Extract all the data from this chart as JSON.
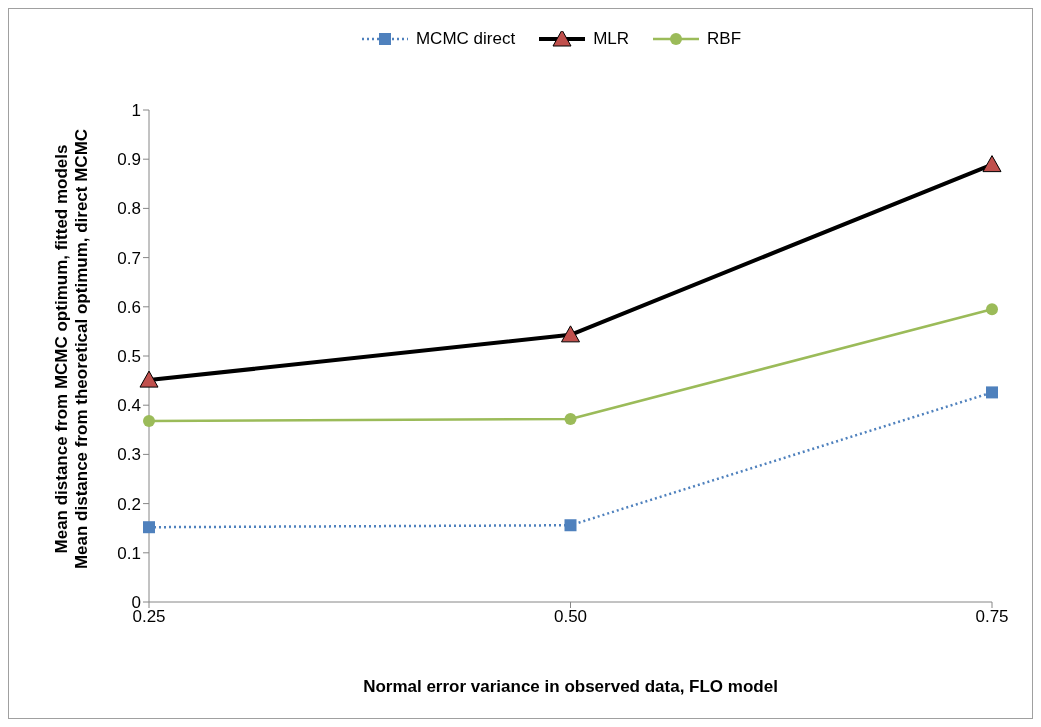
{
  "chart_data": {
    "type": "line",
    "xlabel": "Normal error variance in observed data, FLO model",
    "ylabel": [
      "Mean distance from MCMC optimum, fitted models",
      "Mean distance from theoretical optimum, direct MCMC"
    ],
    "categories": [
      "0.25",
      "0.50",
      "0.75"
    ],
    "series": [
      {
        "name": "MCMC direct",
        "color": "#4f81bd",
        "marker": "square",
        "line_style": "dotted",
        "values": [
          0.152,
          0.156,
          0.426
        ]
      },
      {
        "name": "MLR",
        "color": "#000000",
        "marker": "triangle",
        "line_style": "solid",
        "values": [
          0.451,
          0.543,
          0.889
        ]
      },
      {
        "name": "RBF",
        "color": "#9bbb59",
        "marker": "circle",
        "line_style": "solid",
        "values": [
          0.368,
          0.372,
          0.595
        ]
      }
    ],
    "ylim": [
      0,
      1
    ],
    "yticks": [
      0,
      0.1,
      0.2,
      0.3,
      0.4,
      0.5,
      0.6,
      0.7,
      0.8,
      0.9,
      1
    ],
    "grid": false,
    "legend": "top"
  }
}
